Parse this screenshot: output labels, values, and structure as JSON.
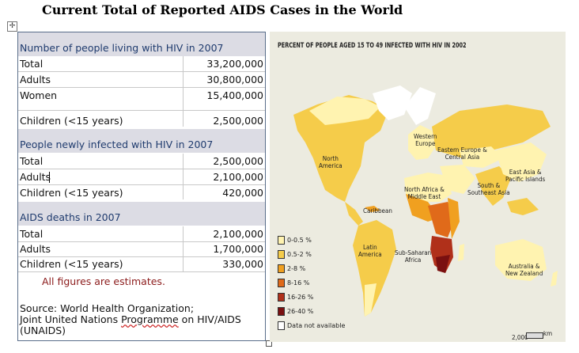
{
  "title": "Current Total of Reported AIDS Cases in the World",
  "table": {
    "sections": [
      {
        "header": "Number of people living with HIV in 2007",
        "rows": [
          {
            "label": "Total",
            "value": "33,200,000"
          },
          {
            "label": "Adults",
            "value": "30,800,000"
          },
          {
            "label": "Women",
            "value": "15,400,000"
          },
          {
            "label": "Children (<15 years)",
            "value": "2,500,000"
          }
        ]
      },
      {
        "header": "People newly infected with HIV in 2007",
        "rows": [
          {
            "label": "Total",
            "value": "2,500,000"
          },
          {
            "label": "Adults",
            "value": "2,100,000"
          },
          {
            "label": "Children (<15 years)",
            "value": "420,000"
          }
        ]
      },
      {
        "header": "AIDS deaths in 2007",
        "rows": [
          {
            "label": "Total",
            "value": "2,100,000"
          },
          {
            "label": "Adults",
            "value": "1,700,000"
          },
          {
            "label": "Children (<15 years)",
            "value": "330,000"
          }
        ]
      }
    ],
    "note": "All figures are estimates.",
    "source_line1": "Source: World Health Organization;",
    "source_line2a": "Joint United Nations ",
    "source_line2b": "Programme",
    "source_line2c": " on HIV/AIDS",
    "source_line3": "(UNAIDS)"
  },
  "map": {
    "title": "PERCENT OF PEOPLE AGED 15 TO 49 INFECTED WITH HIV IN 2002",
    "regions": {
      "north_america": "North\nAmerica",
      "western_europe": "Western\nEurope",
      "eastern_europe": "Eastern Europe &\nCentral Asia",
      "east_asia": "East Asia &\nPacific Islands",
      "south_asia": "South &\nSoutheast Asia",
      "north_africa": "North Africa &\nMiddle East",
      "caribbean": "Caribbean",
      "latin_america": "Latin\nAmerica",
      "sub_saharan": "Sub-Saharan\nAfrica",
      "australia": "Australia &\nNew Zealand"
    },
    "legend": [
      {
        "label": "0-0.5 %",
        "color": "#fff3b0"
      },
      {
        "label": "0.5-2 %",
        "color": "#f5cc4a"
      },
      {
        "label": "2-8 %",
        "color": "#f0a020"
      },
      {
        "label": "8-16 %",
        "color": "#e06a1a"
      },
      {
        "label": "16-26 %",
        "color": "#b0301a"
      },
      {
        "label": "26-40 %",
        "color": "#7a1010"
      },
      {
        "label": "Data not available",
        "color": "#ffffff"
      }
    ],
    "scale_value": "2,000",
    "scale_unit": "km"
  },
  "colors": {
    "header_bg": "#dcdce4",
    "header_text": "#1f3b6e",
    "note": "#8b1a1a"
  }
}
